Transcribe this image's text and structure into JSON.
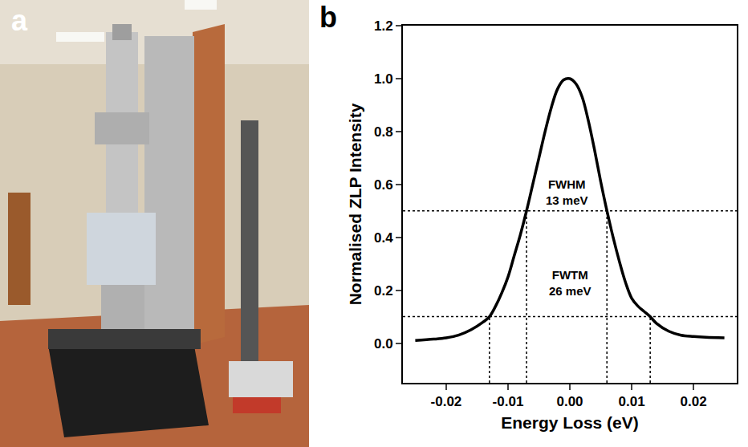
{
  "panel_labels": [
    "a",
    "b"
  ],
  "chart_data": {
    "type": "line",
    "x_label": "Energy Loss (eV)",
    "y_label": "Normalised ZLP Intensity",
    "color": "#000000",
    "grid": false,
    "x": [
      -0.025,
      -0.022,
      -0.02,
      -0.018,
      -0.016,
      -0.014,
      -0.013,
      -0.012,
      -0.011,
      -0.01,
      -0.009,
      -0.008,
      -0.007,
      -0.006,
      -0.005,
      -0.004,
      -0.003,
      -0.002,
      -0.001,
      0.0,
      0.001,
      0.002,
      0.003,
      0.004,
      0.005,
      0.006,
      0.007,
      0.008,
      0.009,
      0.01,
      0.011,
      0.012,
      0.013,
      0.014,
      0.016,
      0.018,
      0.02,
      0.022,
      0.025
    ],
    "values": [
      0.01,
      0.015,
      0.02,
      0.03,
      0.05,
      0.08,
      0.1,
      0.14,
      0.19,
      0.25,
      0.33,
      0.41,
      0.5,
      0.6,
      0.7,
      0.8,
      0.89,
      0.96,
      0.995,
      1.0,
      0.98,
      0.93,
      0.84,
      0.73,
      0.61,
      0.5,
      0.4,
      0.31,
      0.23,
      0.17,
      0.14,
      0.12,
      0.1,
      0.075,
      0.045,
      0.03,
      0.025,
      0.022,
      0.02
    ],
    "xlim": [
      -0.027,
      0.027
    ],
    "ylim": [
      -0.15,
      1.2
    ],
    "xticks": [
      -0.02,
      -0.01,
      {
        "value": 0,
        "label": "0.00"
      },
      0.01,
      0.02
    ],
    "yticks": [
      {
        "value": 0,
        "label": "0.0"
      },
      0.2,
      0.4,
      0.6,
      0.8,
      {
        "value": 1,
        "label": "1.0"
      },
      1.2
    ],
    "reference_lines": [
      {
        "y": 0.5,
        "x": [
          -0.007,
          0.006
        ],
        "label": [
          "FWHM",
          "13 meV"
        ]
      },
      {
        "y": 0.1,
        "x": [
          -0.013,
          0.013
        ],
        "label": [
          "FWTM",
          "26 meV"
        ]
      }
    ]
  }
}
